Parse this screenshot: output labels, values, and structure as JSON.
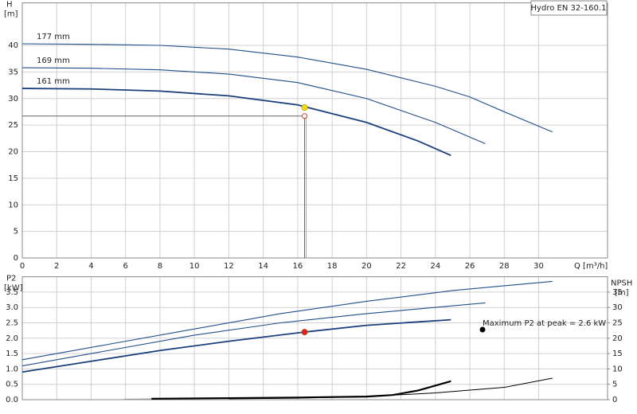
{
  "chart_data": [
    {
      "type": "line",
      "title": "Hydro EN 32-160.1",
      "ylabel": "H",
      "yunit": "[m]",
      "xlabel": "Q [m³/h]",
      "xlim": [
        0,
        34
      ],
      "xticks": [
        0,
        2,
        4,
        6,
        8,
        10,
        12,
        14,
        16,
        18,
        20,
        22,
        24,
        26,
        28,
        30
      ],
      "ylim": [
        0,
        48
      ],
      "yticks": [
        0,
        5,
        10,
        15,
        20,
        25,
        30,
        35,
        40
      ],
      "grid": true,
      "series": [
        {
          "name": "177 mm",
          "color": "#1f4e8c",
          "x": [
            0,
            4,
            8,
            12,
            16,
            20,
            24,
            26,
            28,
            30.8
          ],
          "values": [
            40.3,
            40.2,
            40.0,
            39.3,
            37.8,
            35.5,
            32.3,
            30.3,
            27.5,
            23.7
          ]
        },
        {
          "name": "169 mm",
          "color": "#1f4e8c",
          "x": [
            0,
            4,
            8,
            12,
            16,
            20,
            24,
            26.9
          ],
          "values": [
            35.8,
            35.7,
            35.4,
            34.6,
            33.0,
            30.0,
            25.5,
            21.5
          ]
        },
        {
          "name": "161 mm",
          "color": "#1a3f7a",
          "x": [
            0,
            4,
            8,
            12,
            16,
            20,
            23,
            24.9
          ],
          "values": [
            31.9,
            31.8,
            31.4,
            30.5,
            28.8,
            25.5,
            22.0,
            19.3
          ]
        }
      ],
      "markers": [
        {
          "x": 16.4,
          "y": 28.3,
          "color": "#f5d800"
        },
        {
          "x": 16.4,
          "y": 26.7,
          "color": "#d04030",
          "hollow": true,
          "reference_lines": true
        }
      ]
    },
    {
      "type": "line",
      "ylabel": "P2",
      "yunit": "[kW]",
      "y2label": "NPSH",
      "y2unit": "[m]",
      "xlim": [
        0,
        34
      ],
      "xticks": [
        0,
        2,
        4,
        6,
        8,
        10,
        12,
        14,
        16,
        18,
        20,
        22,
        24,
        26,
        28,
        30
      ],
      "ylim": [
        0,
        4
      ],
      "yticks": [
        {
          "value": 0,
          "label": "0.0"
        },
        {
          "value": 0.5,
          "label": "0.5"
        },
        {
          "value": 1,
          "label": "1.0"
        },
        {
          "value": 1.5,
          "label": "1.5"
        },
        {
          "value": 2,
          "label": "2.0"
        },
        {
          "value": 2.5,
          "label": "2.5"
        },
        {
          "value": 3,
          "label": "3.0"
        },
        {
          "value": 3.5,
          "label": "3.5"
        }
      ],
      "y2lim": [
        0,
        40
      ],
      "y2ticks": [
        0,
        5,
        10,
        15,
        20,
        25,
        30,
        35
      ],
      "grid": true,
      "annotation": "Maximum P2 at peak = 2.6 kW",
      "series": [
        {
          "color": "#1f4e8c",
          "x": [
            0,
            5,
            10,
            15,
            20,
            25,
            30.8
          ],
          "values": [
            1.3,
            1.8,
            2.3,
            2.8,
            3.2,
            3.55,
            3.85
          ]
        },
        {
          "color": "#1f4e8c",
          "x": [
            0,
            5,
            10,
            15,
            20,
            26.9
          ],
          "values": [
            1.1,
            1.6,
            2.1,
            2.5,
            2.8,
            3.15
          ]
        },
        {
          "color": "#1a3f7a",
          "x": [
            0,
            4,
            8,
            12,
            16.4,
            20,
            24.9
          ],
          "values": [
            0.9,
            1.25,
            1.6,
            1.9,
            2.2,
            2.42,
            2.6
          ]
        },
        {
          "color": "#000000",
          "axis": "y2",
          "width": 2.2,
          "x": [
            7.5,
            12,
            16,
            20,
            21.5,
            23,
            24.9
          ],
          "values": [
            0.3,
            0.5,
            0.7,
            1.0,
            1.5,
            3.0,
            6.0
          ]
        },
        {
          "color": "#000000",
          "axis": "y2",
          "width": 1,
          "x": [
            12,
            16,
            20,
            24,
            28,
            30.8
          ],
          "values": [
            0.3,
            0.5,
            1.0,
            2.2,
            4.0,
            7.0
          ]
        },
        {
          "color": "#999999",
          "axis": "y2",
          "width": 1.5,
          "x": [
            5.9,
            7.5
          ],
          "values": [
            0.1,
            0.2
          ]
        }
      ],
      "markers": [
        {
          "x": 16.4,
          "y": 2.2,
          "color": "#e02020"
        }
      ]
    }
  ]
}
